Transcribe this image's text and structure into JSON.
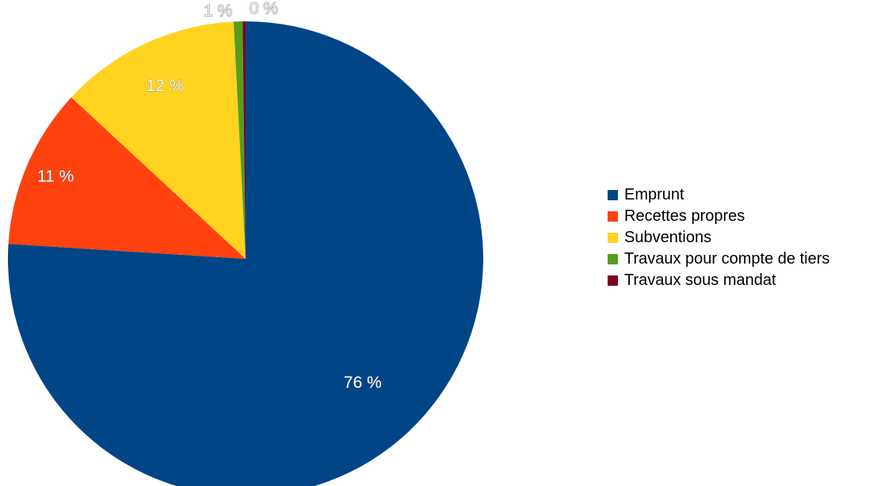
{
  "chart_data": {
    "type": "pie",
    "title": "",
    "legend_position": "right",
    "start": "top",
    "direction": "clockwise",
    "categories": [
      "Emprunt",
      "Recettes propres",
      "Subventions",
      "Travaux pour compte de tiers",
      "Travaux sous mandat"
    ],
    "values": [
      76.0,
      10.9,
      12.3,
      0.6,
      0.2
    ],
    "labels": [
      "76 %",
      "11 %",
      "12 %",
      "1 %",
      "0 %"
    ],
    "colors": [
      "#004586",
      "#ff420e",
      "#ffd320",
      "#579d1c",
      "#7e0021"
    ]
  }
}
